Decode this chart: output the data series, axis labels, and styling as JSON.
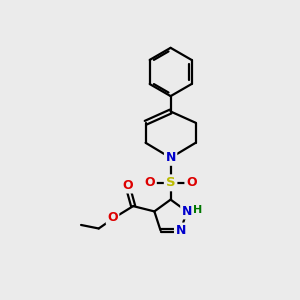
{
  "bg_color": "#ebebeb",
  "bond_color": "#000000",
  "bond_width": 1.6,
  "atom_colors": {
    "N": "#0000cc",
    "O": "#dd0000",
    "S": "#bbbb00",
    "H": "#007700",
    "C": "#000000"
  },
  "figsize": [
    3.0,
    3.0
  ],
  "dpi": 100
}
